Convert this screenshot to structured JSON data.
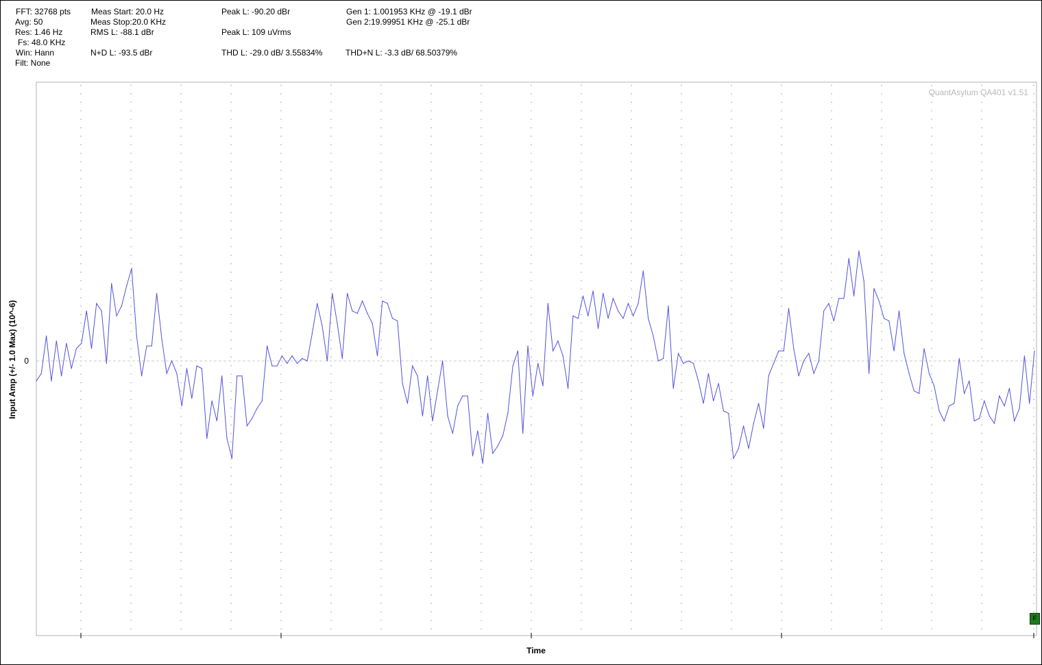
{
  "stats": {
    "col1": [
      "FFT: 32768 pts",
      "Avg: 50",
      "Res: 1.46 Hz",
      "Fs: 48.0 KHz",
      "Win: Hann",
      "Filt: None"
    ],
    "meas_start": "Meas Start: 20.0 Hz",
    "meas_stop": "Meas Stop:20.0 KHz",
    "rms": "RMS L: -88.1 dBr",
    "nd": "N+D L: -93.5 dBr",
    "peak_dbr": "Peak L: -90.20 dBr",
    "peak_uv": "Peak L: 109 uVrms",
    "thd": "THD L: -29.0 dB/ 3.55834%",
    "gen1": "Gen 1: 1.001953 KHz @ -19.1  dBr",
    "gen2": "Gen 2:19.99951 KHz @ -25.1  dBr",
    "thdn": "THD+N L: -3.3 dB/ 68.50379%"
  },
  "watermark": "QuantAsylum QA401 v1.51",
  "flag_label": "F",
  "chart_data": {
    "type": "line",
    "xlabel": "Time",
    "ylabel": "Input Amp (+/- 1.0 Max) (10^-6)",
    "y_tick_labels": [
      "0"
    ],
    "ylim": [
      -1.1,
      1.1
    ],
    "grid": true,
    "line_color": "#5050e0",
    "series": [
      {
        "values": [
          -0.08,
          -0.05,
          0.1,
          -0.08,
          0.08,
          -0.06,
          0.07,
          -0.03,
          0.05,
          0.07,
          0.2,
          0.05,
          0.23,
          0.2,
          -0.01,
          0.31,
          0.18,
          0.22,
          0.3,
          0.37,
          0.1,
          -0.06,
          0.06,
          0.06,
          0.27,
          0.09,
          -0.05,
          0.0,
          -0.05,
          -0.18,
          -0.03,
          -0.15,
          -0.02,
          -0.03,
          -0.31,
          -0.16,
          -0.24,
          -0.06,
          -0.31,
          -0.39,
          -0.06,
          -0.06,
          -0.26,
          -0.23,
          -0.19,
          -0.16,
          0.06,
          -0.02,
          -0.02,
          0.02,
          -0.01,
          0.02,
          -0.01,
          0.01,
          0.0,
          0.11,
          0.23,
          0.14,
          0.0,
          0.27,
          0.15,
          0.01,
          0.27,
          0.2,
          0.19,
          0.24,
          0.19,
          0.15,
          0.02,
          0.24,
          0.23,
          0.17,
          0.16,
          -0.09,
          -0.17,
          -0.02,
          -0.06,
          -0.22,
          -0.06,
          -0.24,
          -0.12,
          -0.0,
          -0.22,
          -0.29,
          -0.18,
          -0.14,
          -0.14,
          -0.38,
          -0.28,
          -0.41,
          -0.21,
          -0.37,
          -0.34,
          -0.3,
          -0.21,
          -0.02,
          0.04,
          -0.29,
          0.06,
          -0.14,
          -0.01,
          -0.1,
          0.23,
          0.04,
          0.08,
          0.02,
          -0.11,
          0.18,
          0.17,
          0.26,
          0.18,
          0.28,
          0.13,
          0.27,
          0.17,
          0.25,
          0.2,
          0.17,
          0.23,
          0.18,
          0.23,
          0.36,
          0.17,
          0.1,
          0.0,
          0.01,
          0.22,
          -0.11,
          0.03,
          -0.01,
          0.0,
          -0.01,
          -0.08,
          -0.17,
          -0.05,
          -0.16,
          -0.09,
          -0.2,
          -0.21,
          -0.39,
          -0.35,
          -0.26,
          -0.35,
          -0.25,
          -0.17,
          -0.27,
          -0.06,
          -0.01,
          0.04,
          0.04,
          0.21,
          0.05,
          -0.06,
          0.0,
          0.03,
          -0.05,
          0.0,
          0.2,
          0.23,
          0.16,
          0.25,
          0.25,
          0.41,
          0.26,
          0.44,
          0.32,
          -0.05,
          0.29,
          0.24,
          0.17,
          0.16,
          0.04,
          0.2,
          0.03,
          -0.05,
          -0.12,
          -0.13,
          0.05,
          -0.05,
          -0.1,
          -0.2,
          -0.24,
          -0.18,
          -0.17,
          0.01,
          -0.13,
          -0.08,
          -0.24,
          -0.23,
          -0.16,
          -0.22,
          -0.25,
          -0.14,
          -0.18,
          -0.11,
          -0.24,
          -0.19,
          0.02,
          -0.17,
          0.04
        ]
      }
    ]
  }
}
